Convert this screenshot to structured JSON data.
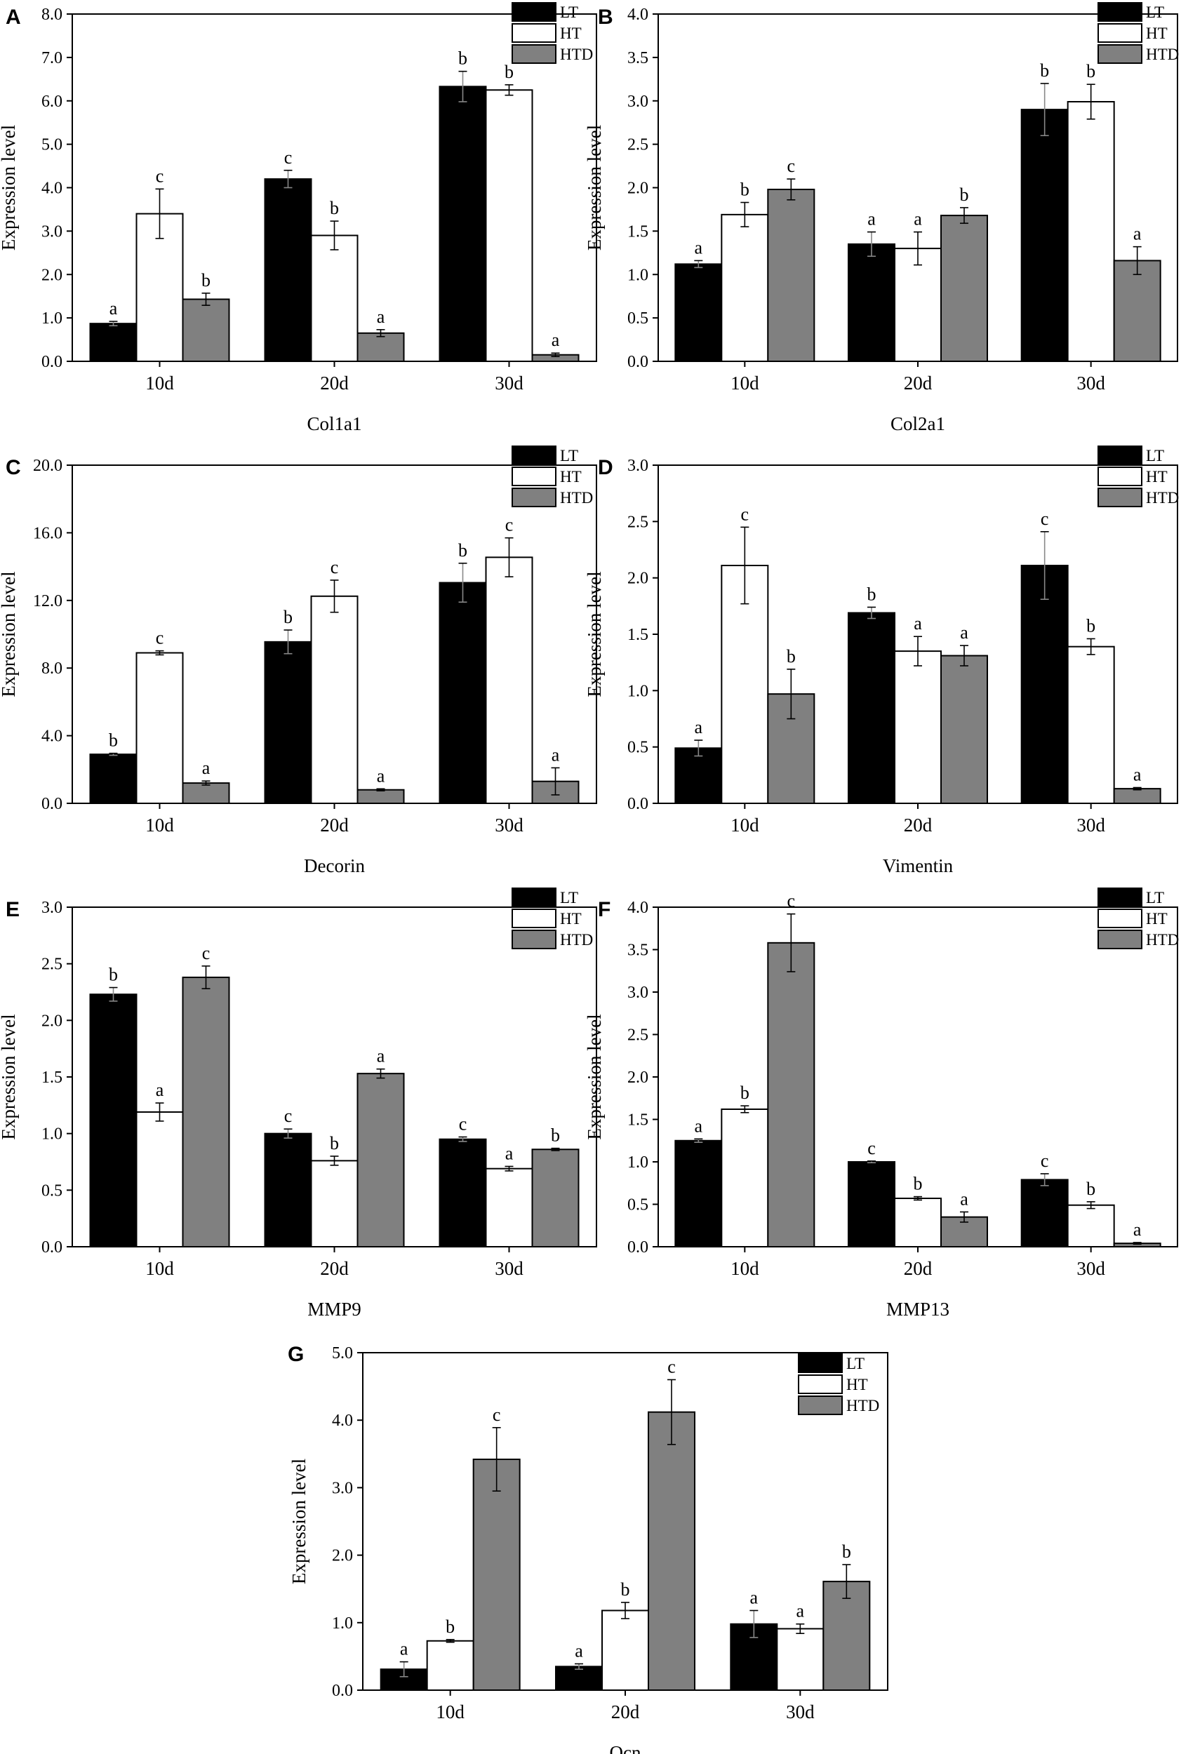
{
  "legend_labels": [
    "LT",
    "HT",
    "HTD"
  ],
  "colors": {
    "LT": "#000000",
    "HT": "#ffffff",
    "HTD": "#808080",
    "axis": "#000000"
  },
  "chart_data": [
    {
      "panel": "A",
      "type": "bar",
      "title": "",
      "xlabel": "Col1a1",
      "ylabel": "Expression level",
      "categories": [
        "10d",
        "20d",
        "30d"
      ],
      "ylim": [
        0,
        8
      ],
      "yticks": [
        "0.0",
        "1.0",
        "2.0",
        "3.0",
        "4.0",
        "5.0",
        "6.0",
        "7.0",
        "8.0"
      ],
      "legend_position": "top-right",
      "series": [
        {
          "name": "LT",
          "values": [
            0.87,
            4.2,
            6.33
          ],
          "errors": [
            0.05,
            0.2,
            0.35
          ],
          "labels": [
            "a",
            "c",
            "b"
          ]
        },
        {
          "name": "HT",
          "values": [
            3.4,
            2.9,
            6.25
          ],
          "errors": [
            0.57,
            0.33,
            0.12
          ],
          "labels": [
            "c",
            "b",
            "b"
          ]
        },
        {
          "name": "HTD",
          "values": [
            1.43,
            0.65,
            0.15
          ],
          "errors": [
            0.14,
            0.08,
            0.04
          ],
          "labels": [
            "b",
            "a",
            "a"
          ]
        }
      ]
    },
    {
      "panel": "B",
      "type": "bar",
      "title": "",
      "xlabel": "Col2a1",
      "ylabel": "Expression level",
      "categories": [
        "10d",
        "20d",
        "30d"
      ],
      "ylim": [
        0,
        4
      ],
      "yticks": [
        "0.0",
        "0.5",
        "1.0",
        "1.5",
        "2.0",
        "2.5",
        "3.0",
        "3.5",
        "4.0"
      ],
      "legend_position": "top-right",
      "series": [
        {
          "name": "LT",
          "values": [
            1.12,
            1.35,
            2.9
          ],
          "errors": [
            0.04,
            0.14,
            0.3
          ],
          "labels": [
            "a",
            "a",
            "b"
          ]
        },
        {
          "name": "HT",
          "values": [
            1.69,
            1.3,
            2.99
          ],
          "errors": [
            0.14,
            0.19,
            0.2
          ],
          "labels": [
            "b",
            "a",
            "b"
          ]
        },
        {
          "name": "HTD",
          "values": [
            1.98,
            1.68,
            1.16
          ],
          "errors": [
            0.12,
            0.09,
            0.16
          ],
          "labels": [
            "c",
            "b",
            "a"
          ]
        }
      ]
    },
    {
      "panel": "C",
      "type": "bar",
      "title": "",
      "xlabel": "Decorin",
      "ylabel": "Expression level",
      "categories": [
        "10d",
        "20d",
        "30d"
      ],
      "ylim": [
        0,
        20
      ],
      "yticks": [
        "0.0",
        "4.0",
        "8.0",
        "12.0",
        "16.0",
        "20.0"
      ],
      "legend_position": "top-right",
      "series": [
        {
          "name": "LT",
          "values": [
            2.9,
            9.55,
            13.05
          ],
          "errors": [
            0.06,
            0.7,
            1.15
          ],
          "labels": [
            "b",
            "b",
            "b"
          ]
        },
        {
          "name": "HT",
          "values": [
            8.9,
            12.25,
            14.55
          ],
          "errors": [
            0.12,
            0.95,
            1.15
          ],
          "labels": [
            "c",
            "c",
            "c"
          ]
        },
        {
          "name": "HTD",
          "values": [
            1.2,
            0.8,
            1.3
          ],
          "errors": [
            0.12,
            0.06,
            0.8
          ],
          "labels": [
            "a",
            "a",
            "a"
          ]
        }
      ]
    },
    {
      "panel": "D",
      "type": "bar",
      "title": "",
      "xlabel": "Vimentin",
      "ylabel": "Expression level",
      "categories": [
        "10d",
        "20d",
        "30d"
      ],
      "ylim": [
        0,
        3
      ],
      "yticks": [
        "0.0",
        "0.5",
        "1.0",
        "1.5",
        "2.0",
        "2.5",
        "3.0"
      ],
      "legend_position": "top-right",
      "series": [
        {
          "name": "LT",
          "values": [
            0.49,
            1.69,
            2.11
          ],
          "errors": [
            0.07,
            0.05,
            0.3
          ],
          "labels": [
            "a",
            "b",
            "c"
          ]
        },
        {
          "name": "HT",
          "values": [
            2.11,
            1.35,
            1.39
          ],
          "errors": [
            0.34,
            0.13,
            0.07
          ],
          "labels": [
            "c",
            "a",
            "b"
          ]
        },
        {
          "name": "HTD",
          "values": [
            0.97,
            1.31,
            0.13
          ],
          "errors": [
            0.22,
            0.09,
            0.01
          ],
          "labels": [
            "b",
            "a",
            "a"
          ]
        }
      ]
    },
    {
      "panel": "E",
      "type": "bar",
      "title": "",
      "xlabel": "MMP9",
      "ylabel": "Expression level",
      "categories": [
        "10d",
        "20d",
        "30d"
      ],
      "ylim": [
        0,
        3
      ],
      "yticks": [
        "0.0",
        "0.5",
        "1.0",
        "1.5",
        "2.0",
        "2.5",
        "3.0"
      ],
      "legend_position": "top-right",
      "series": [
        {
          "name": "LT",
          "values": [
            2.23,
            1.0,
            0.95
          ],
          "errors": [
            0.06,
            0.04,
            0.02
          ],
          "labels": [
            "b",
            "c",
            "c"
          ]
        },
        {
          "name": "HT",
          "values": [
            1.19,
            0.76,
            0.69
          ],
          "errors": [
            0.08,
            0.04,
            0.02
          ],
          "labels": [
            "a",
            "b",
            "a"
          ]
        },
        {
          "name": "HTD",
          "values": [
            2.38,
            1.53,
            0.86
          ],
          "errors": [
            0.1,
            0.04,
            0.01
          ],
          "labels": [
            "c",
            "a",
            "b"
          ]
        }
      ]
    },
    {
      "panel": "F",
      "type": "bar",
      "title": "",
      "xlabel": "MMP13",
      "ylabel": "Expression level",
      "categories": [
        "10d",
        "20d",
        "30d"
      ],
      "ylim": [
        0,
        4
      ],
      "yticks": [
        "0.0",
        "0.5",
        "1.0",
        "1.5",
        "2.0",
        "2.5",
        "3.0",
        "3.5",
        "4.0"
      ],
      "legend_position": "top-right",
      "series": [
        {
          "name": "LT",
          "values": [
            1.25,
            1.0,
            0.79
          ],
          "errors": [
            0.02,
            0.01,
            0.07
          ],
          "labels": [
            "a",
            "c",
            "c"
          ]
        },
        {
          "name": "HT",
          "values": [
            1.62,
            0.57,
            0.49
          ],
          "errors": [
            0.04,
            0.02,
            0.04
          ],
          "labels": [
            "b",
            "b",
            "b"
          ]
        },
        {
          "name": "HTD",
          "values": [
            3.58,
            0.35,
            0.04
          ],
          "errors": [
            0.34,
            0.06,
            0.01
          ],
          "labels": [
            "c",
            "a",
            "a"
          ]
        }
      ]
    },
    {
      "panel": "G",
      "type": "bar",
      "title": "",
      "xlabel": "Ocn",
      "ylabel": "Expression level",
      "categories": [
        "10d",
        "20d",
        "30d"
      ],
      "ylim": [
        0,
        5
      ],
      "yticks": [
        "0.0",
        "1.0",
        "2.0",
        "3.0",
        "4.0",
        "5.0"
      ],
      "legend_position": "top-right",
      "series": [
        {
          "name": "LT",
          "values": [
            0.31,
            0.35,
            0.98
          ],
          "errors": [
            0.11,
            0.04,
            0.2
          ],
          "labels": [
            "a",
            "a",
            "a"
          ]
        },
        {
          "name": "HT",
          "values": [
            0.73,
            1.18,
            0.91
          ],
          "errors": [
            0.02,
            0.12,
            0.07
          ],
          "labels": [
            "b",
            "b",
            "a"
          ]
        },
        {
          "name": "HTD",
          "values": [
            3.42,
            4.12,
            1.61
          ],
          "errors": [
            0.47,
            0.48,
            0.25
          ],
          "labels": [
            "c",
            "c",
            "b"
          ]
        }
      ]
    }
  ]
}
